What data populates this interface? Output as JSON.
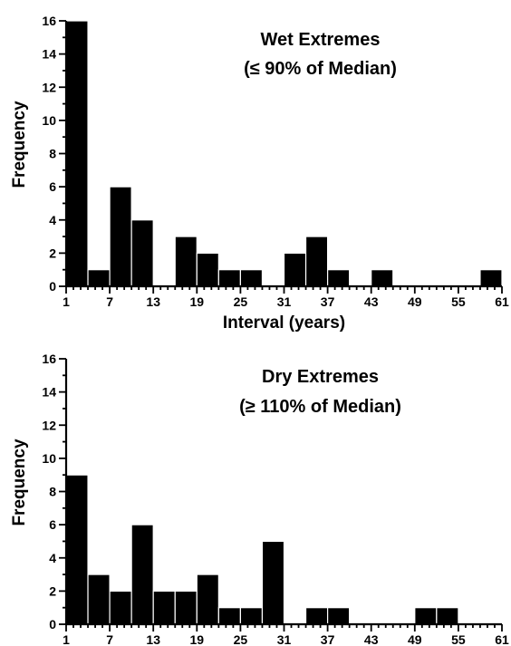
{
  "chart_data": [
    {
      "type": "bar",
      "title": "Wet Extremes",
      "subtitle": "(≤ 90% of Median)",
      "xlabel": "Interval (years)",
      "ylabel": "Frequency",
      "bin_width": 3,
      "x_bin_starts": [
        1,
        4,
        7,
        10,
        13,
        16,
        19,
        22,
        25,
        28,
        31,
        34,
        37,
        40,
        43,
        46,
        49,
        52,
        55,
        58
      ],
      "values": [
        16,
        1,
        6,
        4,
        0,
        3,
        2,
        1,
        1,
        0,
        2,
        3,
        1,
        0,
        1,
        0,
        0,
        0,
        0,
        1
      ],
      "xlim": [
        1,
        61
      ],
      "ylim": [
        0,
        16
      ],
      "x_tick_labels": [
        "1",
        "7",
        "13",
        "19",
        "25",
        "31",
        "37",
        "43",
        "49",
        "55",
        "61"
      ],
      "y_tick_labels": [
        "0",
        "2",
        "4",
        "6",
        "8",
        "10",
        "12",
        "14",
        "16"
      ],
      "grid": false,
      "bar_color": "#000000"
    },
    {
      "type": "bar",
      "title": "Dry Extremes",
      "subtitle": "(≥ 110% of Median)",
      "xlabel": "",
      "ylabel": "Frequency",
      "bin_width": 3,
      "x_bin_starts": [
        1,
        4,
        7,
        10,
        13,
        16,
        19,
        22,
        25,
        28,
        31,
        34,
        37,
        40,
        43,
        46,
        49,
        52,
        55,
        58
      ],
      "values": [
        9,
        3,
        2,
        6,
        2,
        2,
        3,
        1,
        1,
        5,
        0,
        1,
        1,
        0,
        0,
        0,
        1,
        1,
        0,
        0
      ],
      "xlim": [
        1,
        61
      ],
      "ylim": [
        0,
        16
      ],
      "x_tick_labels": [
        "1",
        "7",
        "13",
        "19",
        "25",
        "31",
        "37",
        "43",
        "49",
        "55",
        "61"
      ],
      "y_tick_labels": [
        "0",
        "2",
        "4",
        "6",
        "8",
        "10",
        "12",
        "14",
        "16"
      ],
      "grid": false,
      "bar_color": "#000000"
    }
  ]
}
